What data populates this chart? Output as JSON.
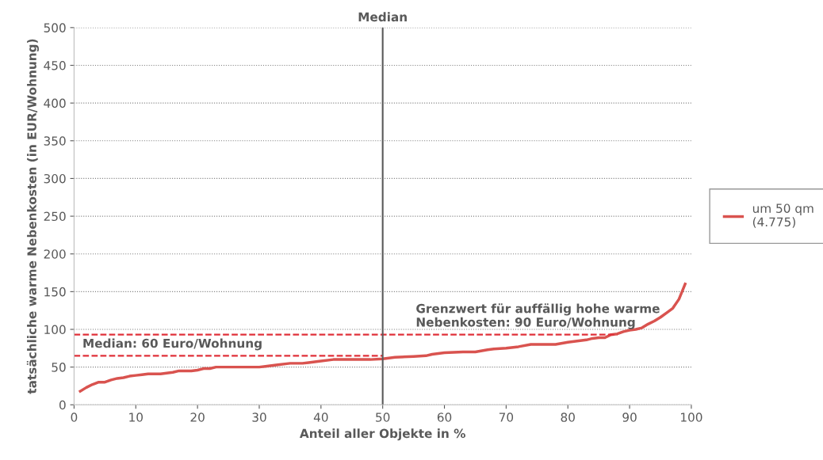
{
  "chart_data": {
    "type": "line",
    "xlabel": "Anteil aller Objekte in %",
    "ylabel": "tatsächliche warme Nebenkosten (in EUR/Wohnung)",
    "xlim": [
      0,
      100
    ],
    "xticks": [
      0,
      10,
      20,
      30,
      40,
      50,
      60,
      70,
      80,
      90,
      100
    ],
    "ylim": [
      0,
      500
    ],
    "yticks": [
      0,
      50,
      100,
      150,
      200,
      250,
      300,
      350,
      400,
      450,
      500
    ],
    "grid": "y",
    "legend": "right",
    "series": [
      {
        "name": "um 50 qm\n(4.775)",
        "color": "#d9534f",
        "x": [
          1,
          2,
          3,
          4,
          5,
          6,
          7,
          8,
          9,
          10,
          11,
          12,
          13,
          14,
          15,
          16,
          17,
          18,
          19,
          20,
          21,
          22,
          23,
          25,
          30,
          31,
          33,
          35,
          37,
          38,
          40,
          42,
          45,
          48,
          50,
          52,
          55,
          57,
          58,
          60,
          63,
          65,
          67,
          68,
          70,
          72,
          74,
          78,
          80,
          82,
          83,
          84,
          85,
          86,
          87,
          88,
          89,
          90,
          91,
          92,
          93,
          94,
          95,
          96,
          97,
          98,
          99
        ],
        "values": [
          18,
          23,
          27,
          30,
          30,
          33,
          35,
          36,
          38,
          39,
          40,
          41,
          41,
          41,
          42,
          43,
          45,
          45,
          45,
          46,
          48,
          48,
          50,
          50,
          50,
          51,
          53,
          55,
          55,
          56,
          58,
          60,
          60,
          60,
          61,
          63,
          64,
          65,
          67,
          69,
          70,
          70,
          73,
          74,
          75,
          77,
          80,
          80,
          83,
          85,
          86,
          88,
          89,
          89,
          93,
          94,
          97,
          99,
          100,
          102,
          107,
          111,
          116,
          122,
          128,
          140,
          160
        ]
      },
      {
        "color": "#e0313a",
        "line_style": "dashed",
        "x": [
          0,
          50
        ],
        "values": [
          65,
          65
        ]
      },
      {
        "color": "#e0313a",
        "line_style": "dashed",
        "x": [
          0,
          88
        ],
        "values": [
          93,
          93
        ]
      }
    ],
    "ref_lines": [
      {
        "axis": "x",
        "value": 50,
        "label": "Median",
        "color": "#595959"
      }
    ],
    "annotations": [
      {
        "text": "Median: 60 Euro/Wohnung",
        "x": 1,
        "y": 65
      },
      {
        "text": "Grenzwert für auffällig hohe warme\nNebenkosten: 90 Euro/Wohnung",
        "x": 55,
        "y": 93
      }
    ]
  }
}
